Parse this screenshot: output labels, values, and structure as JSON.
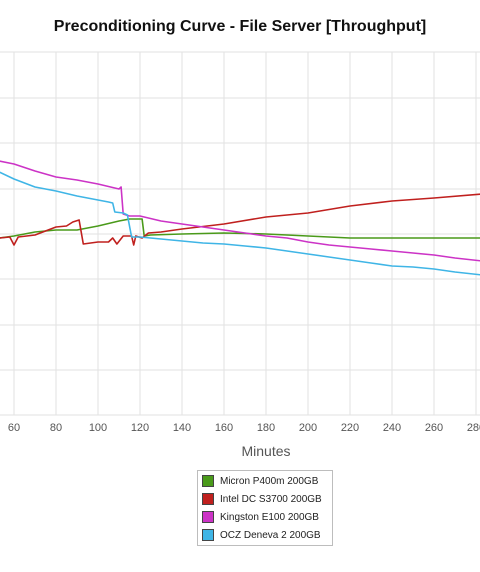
{
  "chart_data": {
    "type": "line",
    "title": "Preconditioning Curve - File Server [Throughput]",
    "xlabel": "Minutes",
    "ylabel": "",
    "x_ticks": [
      60,
      80,
      100,
      120,
      140,
      160,
      180,
      200,
      220,
      240,
      260,
      280
    ],
    "xlim": [
      53,
      283
    ],
    "grid": true,
    "legend_position": "bottom-center",
    "series": [
      {
        "name": "Micron P400m 200GB",
        "color": "#4a9a1a",
        "points": [
          [
            53,
            -4
          ],
          [
            60,
            -2
          ],
          [
            70,
            2
          ],
          [
            80,
            4
          ],
          [
            90,
            4
          ],
          [
            100,
            8
          ],
          [
            110,
            13
          ],
          [
            115,
            15
          ],
          [
            121,
            15
          ],
          [
            122,
            -2
          ],
          [
            125,
            -1
          ],
          [
            140,
            0
          ],
          [
            160,
            1
          ],
          [
            180,
            0
          ],
          [
            200,
            -2
          ],
          [
            220,
            -4
          ],
          [
            240,
            -4
          ],
          [
            260,
            -4
          ],
          [
            283,
            -4
          ]
        ]
      },
      {
        "name": "Intel DC S3700 200GB",
        "color": "#c0201e",
        "points": [
          [
            53,
            -4
          ],
          [
            58,
            -3
          ],
          [
            60,
            -11
          ],
          [
            62,
            -3
          ],
          [
            70,
            -1
          ],
          [
            80,
            7
          ],
          [
            85,
            8
          ],
          [
            88,
            12
          ],
          [
            91,
            14
          ],
          [
            93,
            -10
          ],
          [
            100,
            -8
          ],
          [
            105,
            -8
          ],
          [
            107,
            -4
          ],
          [
            109,
            -10
          ],
          [
            112,
            -2
          ],
          [
            116,
            -2
          ],
          [
            117,
            -11
          ],
          [
            118,
            -2
          ],
          [
            121,
            -4
          ],
          [
            124,
            1
          ],
          [
            130,
            2
          ],
          [
            140,
            5
          ],
          [
            160,
            10
          ],
          [
            180,
            17
          ],
          [
            200,
            21
          ],
          [
            220,
            28
          ],
          [
            240,
            33
          ],
          [
            260,
            36
          ],
          [
            283,
            40
          ]
        ]
      },
      {
        "name": "Kingston E100 200GB",
        "color": "#cc33c6",
        "points": [
          [
            53,
            73
          ],
          [
            60,
            70
          ],
          [
            70,
            63
          ],
          [
            80,
            57
          ],
          [
            90,
            54
          ],
          [
            100,
            50
          ],
          [
            108,
            46
          ],
          [
            110,
            45
          ],
          [
            111,
            47
          ],
          [
            112,
            20
          ],
          [
            115,
            18
          ],
          [
            120,
            18
          ],
          [
            130,
            13
          ],
          [
            140,
            10
          ],
          [
            150,
            7
          ],
          [
            160,
            4
          ],
          [
            170,
            1
          ],
          [
            180,
            -2
          ],
          [
            190,
            -4
          ],
          [
            200,
            -8
          ],
          [
            210,
            -11
          ],
          [
            220,
            -13
          ],
          [
            230,
            -15
          ],
          [
            240,
            -17
          ],
          [
            250,
            -19
          ],
          [
            260,
            -21
          ],
          [
            270,
            -24
          ],
          [
            283,
            -27
          ]
        ]
      },
      {
        "name": "OCZ Deneva 2 200GB",
        "color": "#3fb5e6",
        "points": [
          [
            53,
            62
          ],
          [
            60,
            55
          ],
          [
            70,
            47
          ],
          [
            80,
            43
          ],
          [
            90,
            38
          ],
          [
            100,
            34
          ],
          [
            105,
            32
          ],
          [
            107,
            31
          ],
          [
            108,
            22
          ],
          [
            112,
            21
          ],
          [
            114,
            19
          ],
          [
            116,
            -3
          ],
          [
            120,
            -3
          ],
          [
            130,
            -5
          ],
          [
            140,
            -7
          ],
          [
            150,
            -9
          ],
          [
            160,
            -10
          ],
          [
            170,
            -12
          ],
          [
            180,
            -14
          ],
          [
            190,
            -17
          ],
          [
            200,
            -20
          ],
          [
            210,
            -23
          ],
          [
            220,
            -26
          ],
          [
            230,
            -29
          ],
          [
            240,
            -32
          ],
          [
            250,
            -33
          ],
          [
            260,
            -35
          ],
          [
            270,
            -38
          ],
          [
            283,
            -41
          ]
        ]
      }
    ]
  }
}
